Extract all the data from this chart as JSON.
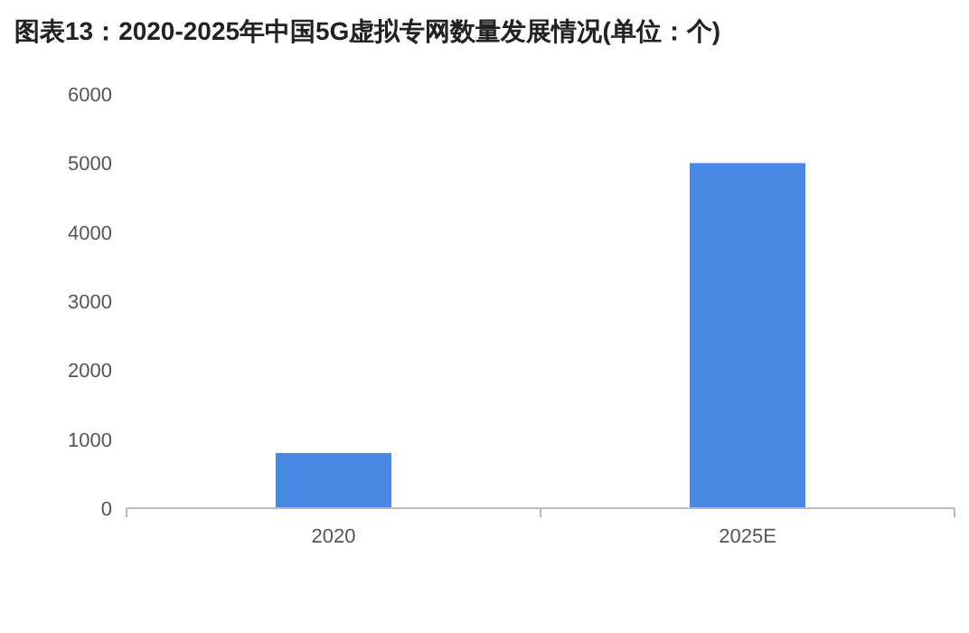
{
  "chart_data": {
    "type": "bar",
    "title": "图表13：2020-2025年中国5G虚拟专网数量发展情况(单位：个)",
    "categories": [
      "2020",
      "2025E"
    ],
    "values": [
      800,
      5000
    ],
    "color": "#4a88e6",
    "ylim": [
      0,
      6000
    ],
    "yticks": [
      0,
      1000,
      2000,
      3000,
      4000,
      5000,
      6000
    ]
  }
}
